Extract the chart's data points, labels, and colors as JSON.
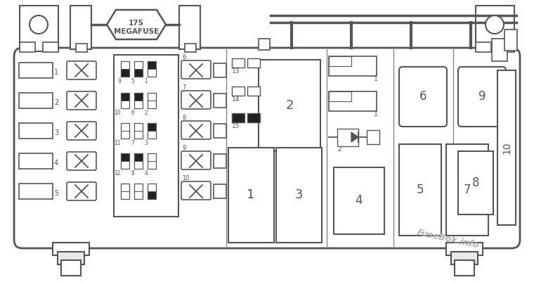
{
  "bg": "#ffffff",
  "lc": "#555555",
  "lc2": "#666666",
  "megafuse_text": "175\nMEGAFUSE",
  "watermark": "FuseBox.info",
  "wm_color": "#b0b0b0"
}
